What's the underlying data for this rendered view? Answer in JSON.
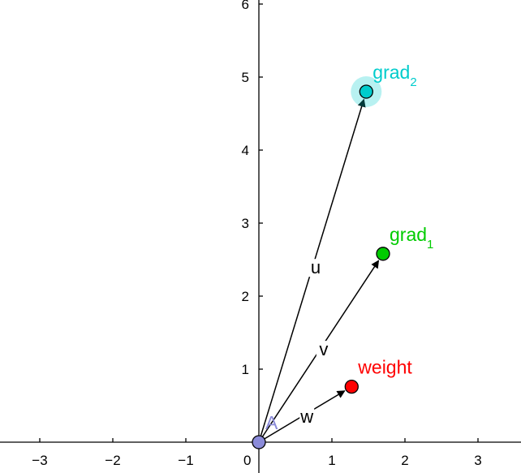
{
  "graph": {
    "x_axis": {
      "range": [
        -3.5,
        3.5
      ],
      "ticks": [
        -3,
        -2,
        -1,
        0,
        1,
        2,
        3
      ]
    },
    "y_axis": {
      "range": [
        0,
        6.1
      ],
      "ticks": [
        1,
        2,
        3,
        4,
        5,
        6
      ]
    },
    "grid": false
  },
  "points": [
    {
      "id": "A",
      "label": "A",
      "subscript": "",
      "x": 0,
      "y": 0,
      "color": "#8b8bd9",
      "highlight": false,
      "label_side": "upper-right"
    },
    {
      "id": "weight",
      "label": "weight",
      "subscript": "",
      "x": 1.27,
      "y": 0.76,
      "color": "#ff0000",
      "highlight": false,
      "label_side": "upper-right"
    },
    {
      "id": "grad1",
      "label": "grad",
      "subscript": "1",
      "x": 1.7,
      "y": 2.58,
      "color": "#00cc00",
      "highlight": false,
      "label_side": "upper-right"
    },
    {
      "id": "grad2",
      "label": "grad",
      "subscript": "2",
      "x": 1.47,
      "y": 4.8,
      "color": "#00cccc",
      "highlight": true,
      "label_side": "upper-right"
    }
  ],
  "vectors": [
    {
      "id": "w",
      "label": "w",
      "from": "A",
      "to": "weight"
    },
    {
      "id": "v",
      "label": "v",
      "from": "A",
      "to": "grad1"
    },
    {
      "id": "u",
      "label": "u",
      "from": "A",
      "to": "grad2"
    }
  ]
}
